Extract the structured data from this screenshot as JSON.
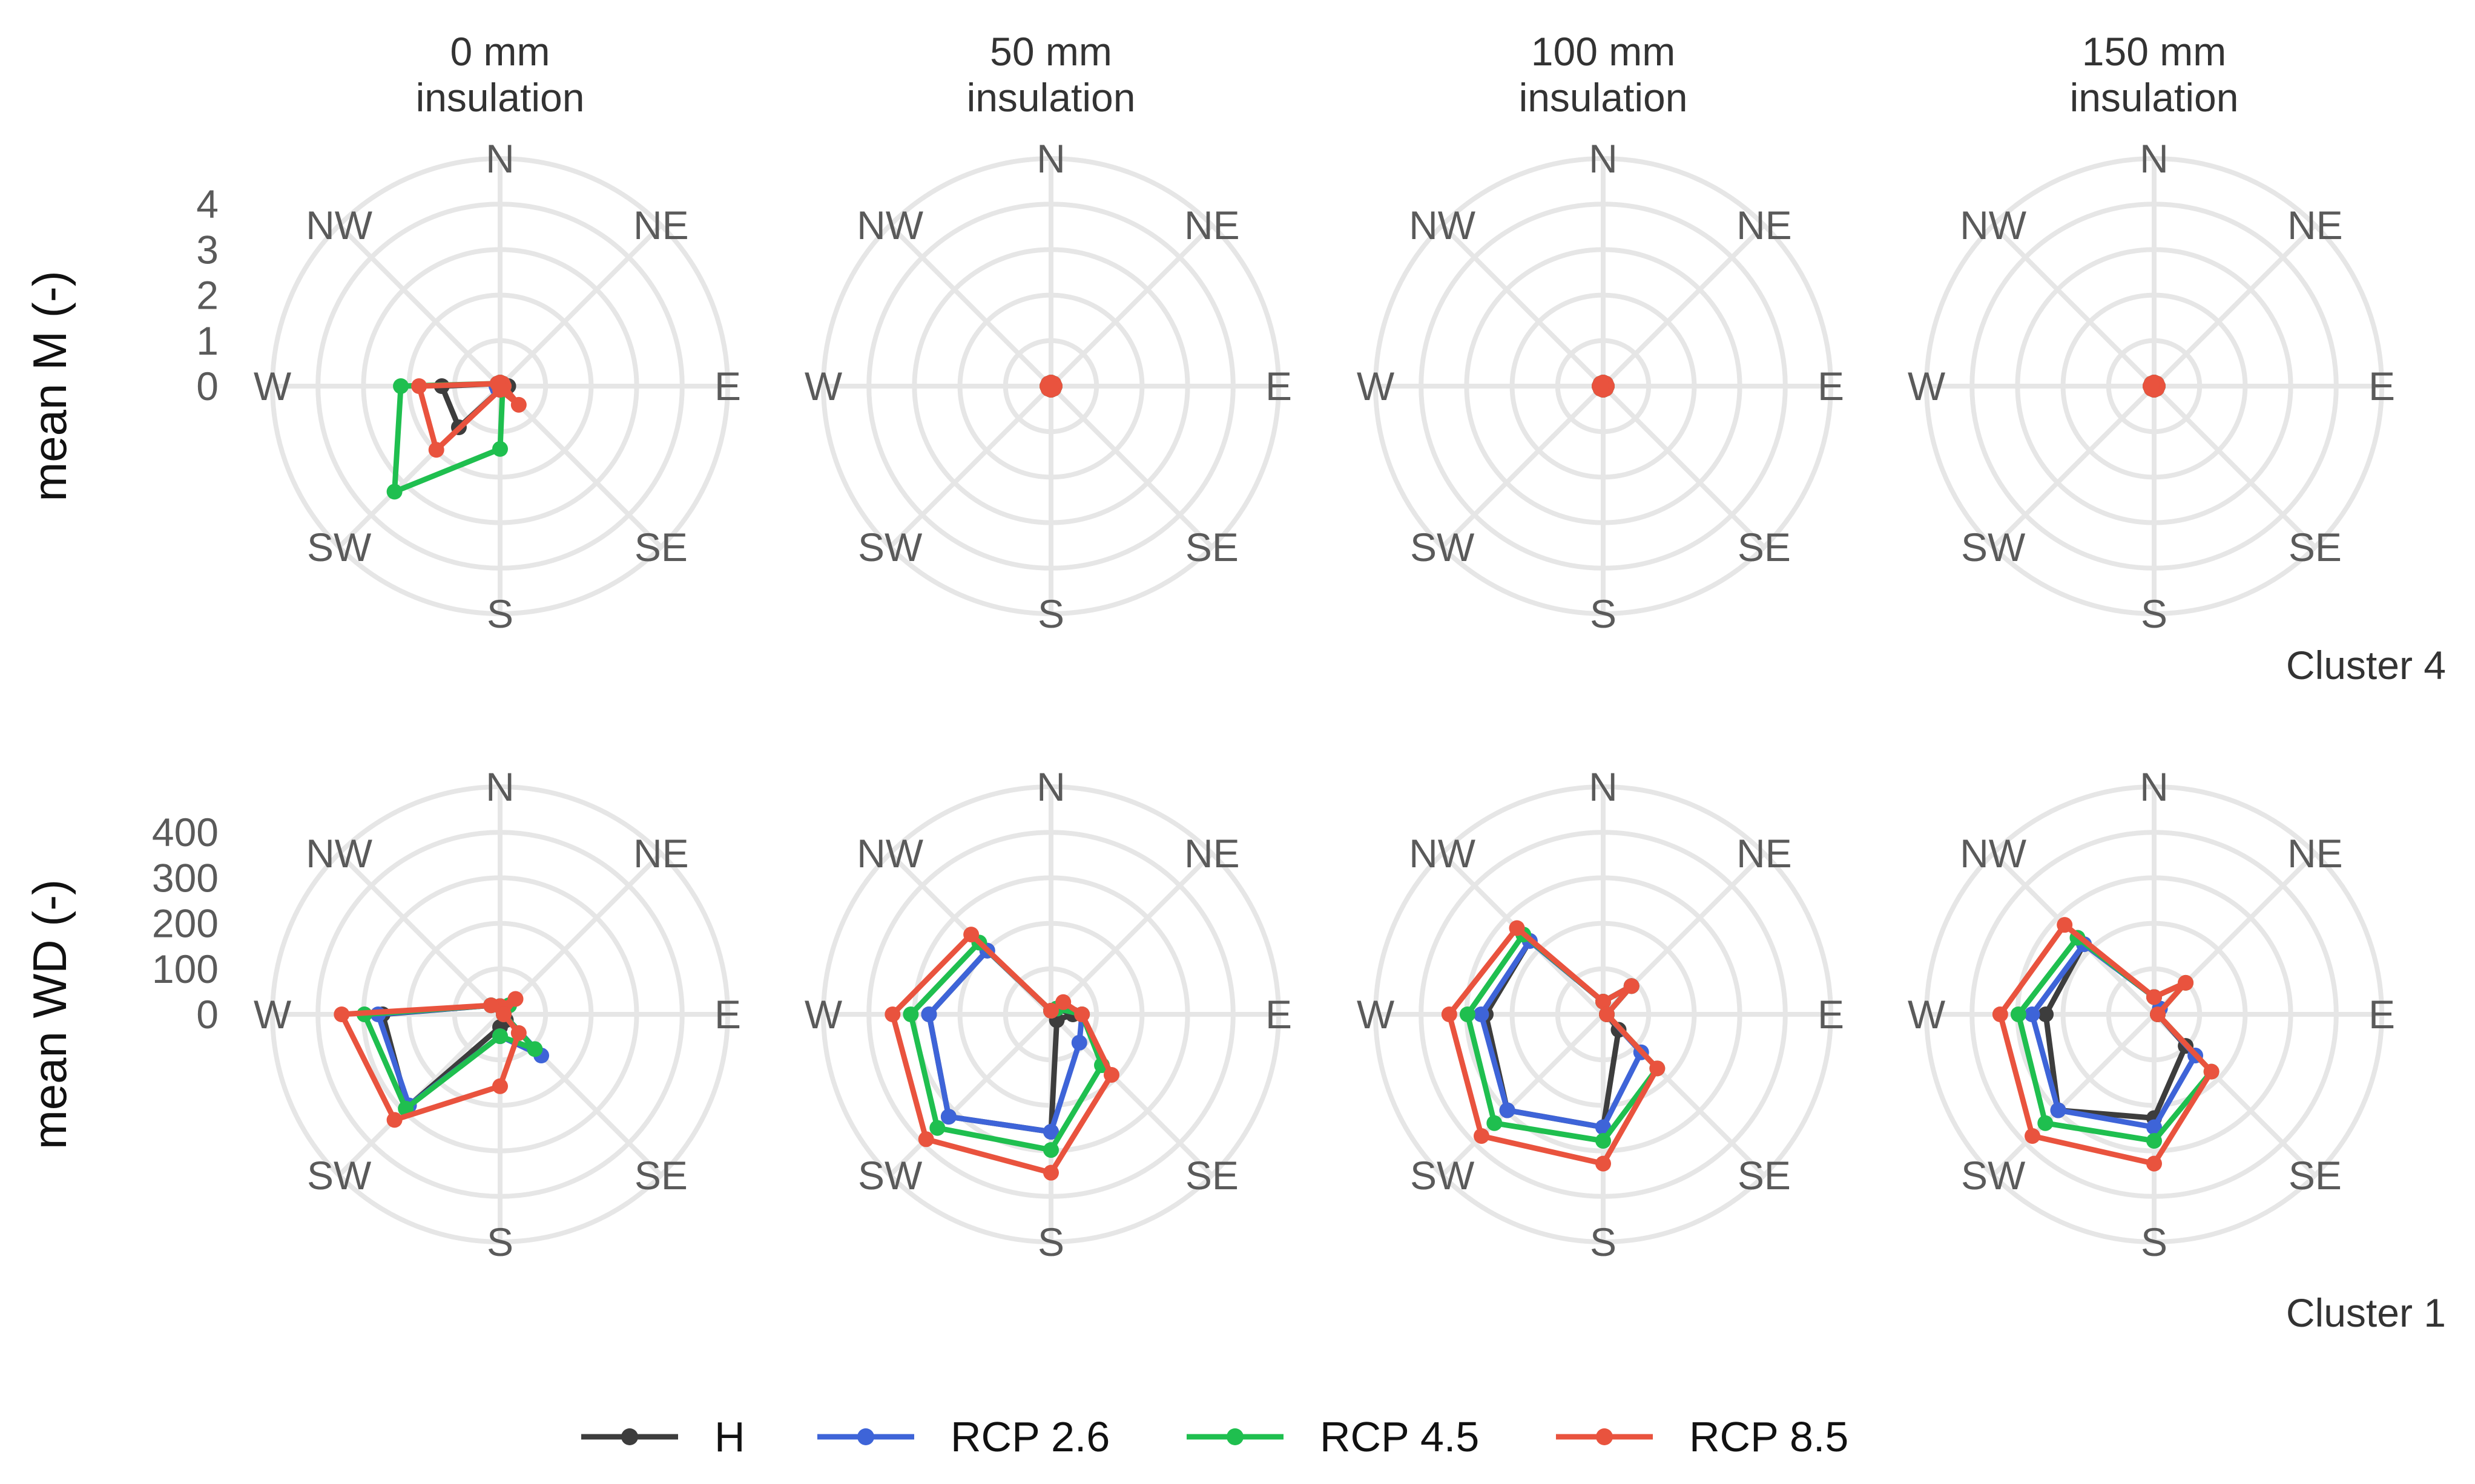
{
  "chart_data": {
    "type": "radar",
    "directions": [
      "N",
      "NE",
      "E",
      "SE",
      "S",
      "SW",
      "W",
      "NW"
    ],
    "columns": [
      "0 mm\ninsulation",
      "50 mm\ninsulation",
      "100 mm\ninsulation",
      "150 mm\ninsulation"
    ],
    "legend": [
      {
        "name": "H",
        "color": "#3d3d3d"
      },
      {
        "name": "RCP 2.6",
        "color": "#3e64d8"
      },
      {
        "name": "RCP 4.5",
        "color": "#1fbf4f"
      },
      {
        "name": "RCP 8.5",
        "color": "#e9533e"
      }
    ],
    "rows": [
      {
        "ylabel": "mean M (-)",
        "cluster": "Cluster 4",
        "r_ticks": [
          "0",
          "1",
          "2",
          "3",
          "4"
        ],
        "r_range": [
          0,
          4
        ],
        "panels": [
          {
            "series": [
              {
                "name": "H",
                "values": [
                  0,
                  0,
                  0.1,
                  0,
                  0,
                  1.2,
                  1.2,
                  0
                ]
              },
              {
                "name": "RCP 2.6",
                "values": [
                  0,
                  0,
                  0,
                  0,
                  0,
                  0,
                  0,
                  0
                ]
              },
              {
                "name": "RCP 4.5",
                "values": [
                  0,
                  0,
                  0,
                  0,
                  1.3,
                  3.2,
                  2.1,
                  0
                ]
              },
              {
                "name": "RCP 8.5",
                "values": [
                  0,
                  0,
                  0,
                  0.5,
                  0,
                  1.9,
                  1.7,
                  0
                ]
              }
            ]
          },
          {
            "series": [
              {
                "name": "H",
                "values": [
                  0,
                  0,
                  0,
                  0,
                  0,
                  0,
                  0,
                  0
                ]
              },
              {
                "name": "RCP 2.6",
                "values": [
                  0,
                  0,
                  0,
                  0,
                  0,
                  0,
                  0,
                  0
                ]
              },
              {
                "name": "RCP 4.5",
                "values": [
                  0,
                  0,
                  0,
                  0,
                  0,
                  0,
                  0,
                  0
                ]
              },
              {
                "name": "RCP 8.5",
                "values": [
                  0,
                  0,
                  0,
                  0,
                  0,
                  0,
                  0,
                  0
                ]
              }
            ]
          },
          {
            "series": [
              {
                "name": "H",
                "values": [
                  0,
                  0,
                  0,
                  0,
                  0,
                  0,
                  0,
                  0
                ]
              },
              {
                "name": "RCP 2.6",
                "values": [
                  0,
                  0,
                  0,
                  0,
                  0,
                  0,
                  0,
                  0
                ]
              },
              {
                "name": "RCP 4.5",
                "values": [
                  0,
                  0,
                  0,
                  0,
                  0,
                  0,
                  0,
                  0
                ]
              },
              {
                "name": "RCP 8.5",
                "values": [
                  0,
                  0,
                  0,
                  0,
                  0,
                  0,
                  0,
                  0
                ]
              }
            ]
          },
          {
            "series": [
              {
                "name": "H",
                "values": [
                  0,
                  0,
                  0,
                  0,
                  0,
                  0,
                  0,
                  0
                ]
              },
              {
                "name": "RCP 2.6",
                "values": [
                  0,
                  0,
                  0,
                  0,
                  0,
                  0,
                  0,
                  0
                ]
              },
              {
                "name": "RCP 4.5",
                "values": [
                  0,
                  0,
                  0,
                  0,
                  0,
                  0,
                  0,
                  0
                ]
              },
              {
                "name": "RCP 8.5",
                "values": [
                  0,
                  0,
                  0,
                  0,
                  0,
                  0,
                  0,
                  0
                ]
              }
            ]
          }
        ]
      },
      {
        "ylabel": "mean WD (-)",
        "cluster": "Cluster 1",
        "r_ticks": [
          "0",
          "100",
          "200",
          "300",
          "400"
        ],
        "r_range": [
          0,
          400
        ],
        "panels": [
          {
            "series": [
              {
                "name": "H",
                "values": [
                  10,
                  20,
                  0,
                  10,
                  20,
                  280,
                  250,
                  20
                ]
              },
              {
                "name": "RCP 2.6",
                "values": [
                  10,
                  20,
                  0,
                  120,
                  40,
                  275,
                  260,
                  20
                ]
              },
              {
                "name": "RCP 4.5",
                "values": [
                  10,
                  20,
                  0,
                  100,
                  40,
                  285,
                  290,
                  20
                ]
              },
              {
                "name": "RCP 8.5",
                "values": [
                  10,
                  40,
                  0,
                  50,
                  150,
                  320,
                  340,
                  20
                ]
              }
            ]
          },
          {
            "series": [
              {
                "name": "H",
                "values": [
                  0,
                  10,
                  40,
                  10,
                  250,
                  310,
                  260,
                  190
                ]
              },
              {
                "name": "RCP 2.6",
                "values": [
                  0,
                  10,
                  60,
                  80,
                  250,
                  310,
                  260,
                  190
                ]
              },
              {
                "name": "RCP 4.5",
                "values": [
                  0,
                  10,
                  60,
                  150,
                  290,
                  345,
                  300,
                  215
                ]
              },
              {
                "name": "RCP 8.5",
                "values": [
                  0,
                  30,
                  60,
                  180,
                  340,
                  380,
                  340,
                  240
                ]
              }
            ]
          },
          {
            "series": [
              {
                "name": "H",
                "values": [
                  20,
                  80,
                  0,
                  40,
                  240,
                  290,
                  250,
                  220
                ]
              },
              {
                "name": "RCP 2.6",
                "values": [
                  20,
                  80,
                  0,
                  110,
                  240,
                  290,
                  260,
                  220
                ]
              },
              {
                "name": "RCP 4.5",
                "values": [
                  20,
                  80,
                  0,
                  160,
                  270,
                  330,
                  290,
                  240
                ]
              },
              {
                "name": "RCP 8.5",
                "values": [
                  20,
                  80,
                  0,
                  160,
                  320,
                  370,
                  330,
                  260
                ]
              }
            ]
          },
          {
            "series": [
              {
                "name": "H",
                "values": [
                  30,
                  10,
                  0,
                  90,
                  220,
                  290,
                  230,
                  210
                ]
              },
              {
                "name": "RCP 2.6",
                "values": [
                  30,
                  10,
                  0,
                  120,
                  240,
                  290,
                  260,
                  210
                ]
              },
              {
                "name": "RCP 4.5",
                "values": [
                  30,
                  90,
                  0,
                  170,
                  270,
                  330,
                  290,
                  230
                ]
              },
              {
                "name": "RCP 8.5",
                "values": [
                  30,
                  90,
                  0,
                  170,
                  320,
                  370,
                  330,
                  270
                ]
              }
            ]
          }
        ]
      }
    ]
  }
}
